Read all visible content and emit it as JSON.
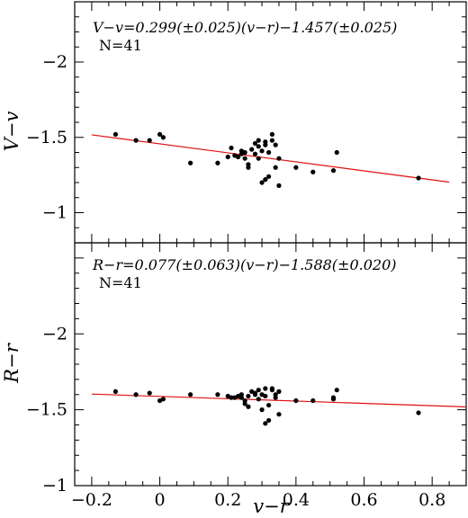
{
  "chart_data": [
    {
      "type": "scatter",
      "ylabel": "V−v",
      "equation": "V−v=0.299(±0.025)(v−r)−1.457(±0.025)",
      "n_label": "N=41",
      "xlim": [
        -0.25,
        0.9
      ],
      "ylim": [
        -0.8,
        -2.4
      ],
      "y_inverted": true,
      "yticks": [
        -1,
        -1.5,
        -2
      ],
      "ytick_labels": [
        "−1",
        "−1.5",
        "−2"
      ],
      "fit": {
        "slope": 0.299,
        "intercept": -1.457,
        "x_range": [
          -0.2,
          0.85
        ],
        "color": "#e01010"
      },
      "points": [
        [
          -0.13,
          -1.52
        ],
        [
          -0.07,
          -1.48
        ],
        [
          -0.03,
          -1.48
        ],
        [
          0.0,
          -1.52
        ],
        [
          0.01,
          -1.5
        ],
        [
          0.09,
          -1.33
        ],
        [
          0.17,
          -1.33
        ],
        [
          0.2,
          -1.37
        ],
        [
          0.21,
          -1.43
        ],
        [
          0.22,
          -1.38
        ],
        [
          0.23,
          -1.37
        ],
        [
          0.24,
          -1.39
        ],
        [
          0.24,
          -1.41
        ],
        [
          0.25,
          -1.36
        ],
        [
          0.25,
          -1.4
        ],
        [
          0.26,
          -1.32
        ],
        [
          0.26,
          -1.3
        ],
        [
          0.27,
          -1.42
        ],
        [
          0.28,
          -1.39
        ],
        [
          0.28,
          -1.46
        ],
        [
          0.29,
          -1.44
        ],
        [
          0.29,
          -1.48
        ],
        [
          0.29,
          -1.36
        ],
        [
          0.3,
          -1.2
        ],
        [
          0.3,
          -1.41
        ],
        [
          0.31,
          -1.45
        ],
        [
          0.31,
          -1.47
        ],
        [
          0.31,
          -1.22
        ],
        [
          0.32,
          -1.24
        ],
        [
          0.32,
          -1.4
        ],
        [
          0.33,
          -1.52
        ],
        [
          0.33,
          -1.48
        ],
        [
          0.34,
          -1.45
        ],
        [
          0.34,
          -1.3
        ],
        [
          0.35,
          -1.36
        ],
        [
          0.35,
          -1.18
        ],
        [
          0.4,
          -1.3
        ],
        [
          0.45,
          -1.27
        ],
        [
          0.51,
          -1.28
        ],
        [
          0.52,
          -1.4
        ],
        [
          0.76,
          -1.23
        ]
      ]
    },
    {
      "type": "scatter",
      "xlabel": "v−r",
      "ylabel": "R−r",
      "equation": "R−r=0.077(±0.063)(v−r)−1.588(±0.020)",
      "n_label": "N=41",
      "xlim": [
        -0.25,
        0.9
      ],
      "ylim": [
        -1.0,
        -2.6
      ],
      "y_inverted": true,
      "xticks": [
        -0.2,
        0,
        0.2,
        0.4,
        0.6,
        0.8
      ],
      "xtick_labels": [
        "−0.2",
        "0",
        "0.2",
        "0.4",
        "0.6",
        "0.8"
      ],
      "yticks": [
        -1,
        -1.5,
        -2
      ],
      "ytick_labels": [
        "−1",
        "−1.5",
        "−2"
      ],
      "fit": {
        "slope": 0.077,
        "intercept": -1.588,
        "x_range": [
          -0.2,
          0.9
        ],
        "color": "#e01010"
      },
      "points": [
        [
          -0.13,
          -1.62
        ],
        [
          -0.07,
          -1.6
        ],
        [
          -0.03,
          -1.61
        ],
        [
          0.0,
          -1.56
        ],
        [
          0.01,
          -1.57
        ],
        [
          0.09,
          -1.6
        ],
        [
          0.17,
          -1.6
        ],
        [
          0.2,
          -1.59
        ],
        [
          0.21,
          -1.58
        ],
        [
          0.22,
          -1.58
        ],
        [
          0.23,
          -1.59
        ],
        [
          0.24,
          -1.58
        ],
        [
          0.24,
          -1.6
        ],
        [
          0.25,
          -1.56
        ],
        [
          0.25,
          -1.54
        ],
        [
          0.26,
          -1.52
        ],
        [
          0.26,
          -1.59
        ],
        [
          0.27,
          -1.62
        ],
        [
          0.28,
          -1.61
        ],
        [
          0.28,
          -1.6
        ],
        [
          0.29,
          -1.63
        ],
        [
          0.29,
          -1.57
        ],
        [
          0.3,
          -1.5
        ],
        [
          0.3,
          -1.6
        ],
        [
          0.31,
          -1.64
        ],
        [
          0.31,
          -1.59
        ],
        [
          0.31,
          -1.41
        ],
        [
          0.32,
          -1.43
        ],
        [
          0.32,
          -1.53
        ],
        [
          0.33,
          -1.64
        ],
        [
          0.33,
          -1.63
        ],
        [
          0.34,
          -1.58
        ],
        [
          0.34,
          -1.6
        ],
        [
          0.35,
          -1.47
        ],
        [
          0.35,
          -1.62
        ],
        [
          0.4,
          -1.56
        ],
        [
          0.45,
          -1.56
        ],
        [
          0.51,
          -1.58
        ],
        [
          0.51,
          -1.57
        ],
        [
          0.52,
          -1.63
        ],
        [
          0.76,
          -1.48
        ]
      ]
    }
  ]
}
